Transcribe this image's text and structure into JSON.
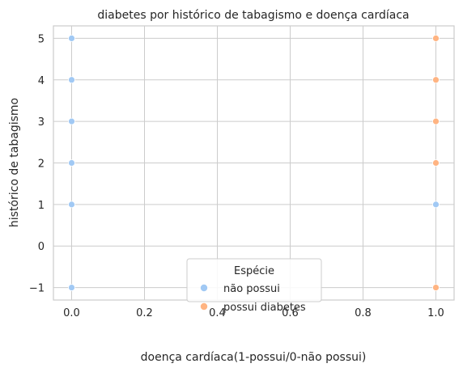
{
  "chart_data": {
    "type": "scatter",
    "title": "diabetes por histórico de tabagismo e doença cardíaca",
    "xlabel": "doença cardíaca(1-possui/0-não possui)",
    "ylabel": "histórico de tabagismo",
    "xlim": [
      -0.05,
      1.05
    ],
    "ylim": [
      -1.3,
      5.3
    ],
    "xticks": [
      0.0,
      0.2,
      0.4,
      0.6,
      0.8,
      1.0
    ],
    "xtick_labels": [
      "0.0",
      "0.2",
      "0.4",
      "0.6",
      "0.8",
      "1.0"
    ],
    "yticks": [
      -1,
      0,
      1,
      2,
      3,
      4,
      5
    ],
    "ytick_labels": [
      "−1",
      "0",
      "1",
      "2",
      "3",
      "4",
      "5"
    ],
    "grid": true,
    "legend": {
      "title": "Espécie",
      "placement": "lower-center"
    },
    "series": [
      {
        "name": "não possui",
        "color": "#a1c9f4",
        "points": [
          {
            "x": 0,
            "y": 5
          },
          {
            "x": 0,
            "y": 4
          },
          {
            "x": 0,
            "y": 3
          },
          {
            "x": 0,
            "y": 2
          },
          {
            "x": 0,
            "y": 1
          },
          {
            "x": 0,
            "y": -1
          },
          {
            "x": 1,
            "y": 1
          }
        ]
      },
      {
        "name": "possui diabetes",
        "color": "#ffb482",
        "points": [
          {
            "x": 1,
            "y": 5
          },
          {
            "x": 1,
            "y": 4
          },
          {
            "x": 1,
            "y": 3
          },
          {
            "x": 1,
            "y": 2
          },
          {
            "x": 1,
            "y": -1
          }
        ]
      }
    ]
  }
}
